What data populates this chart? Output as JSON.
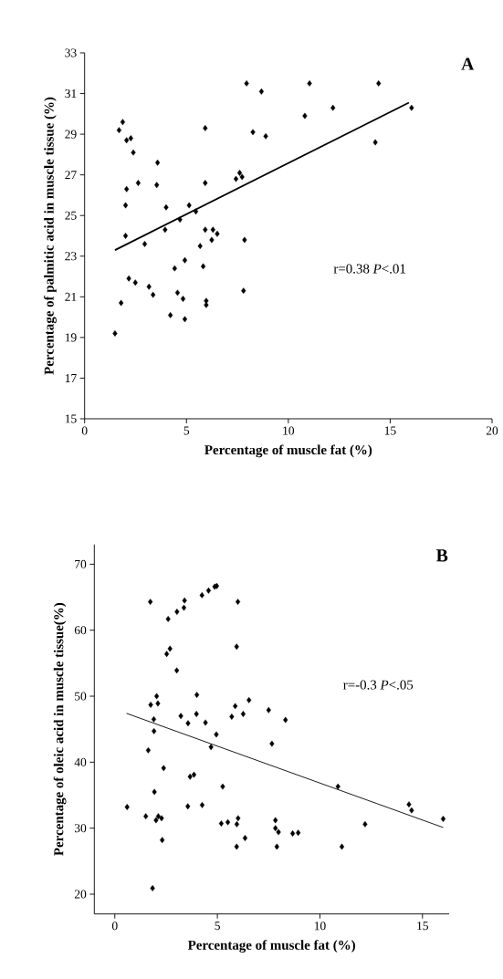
{
  "chart_data": [
    {
      "type": "scatter",
      "title": "A",
      "xlabel": "Percentage of muscle fat (%)",
      "ylabel": "Percentage of palmitic acid in muscle tissue (%)",
      "xlim": [
        0,
        20
      ],
      "ylim": [
        15,
        33
      ],
      "xticks": [
        0,
        5,
        10,
        15,
        20
      ],
      "yticks": [
        15,
        17,
        19,
        21,
        23,
        25,
        27,
        29,
        31,
        33
      ],
      "annotations": [
        "r=0.38    *P*<.01"
      ],
      "series": [
        {
          "type": "scatter",
          "marker": "diamond",
          "color": "#000000",
          "x": [
            1.49,
            1.79,
            1.69,
            1.87,
            2.06,
            2.27,
            2.39,
            2.06,
            2.01,
            2.01,
            2.17,
            2.49,
            2.63,
            2.95,
            3.16,
            3.36,
            3.58,
            3.54,
            4.0,
            3.95,
            4.21,
            4.42,
            4.56,
            4.68,
            4.83,
            4.92,
            4.92,
            5.13,
            5.46,
            5.67,
            5.82,
            5.92,
            5.92,
            5.92,
            5.97,
            5.97,
            6.24,
            6.3,
            6.51,
            7.43,
            7.61,
            7.73,
            7.85,
            7.8,
            7.95,
            8.26,
            8.68,
            8.89,
            10.81,
            11.04,
            12.19,
            14.27,
            14.43,
            16.05
          ],
          "values": [
            19.2,
            20.7,
            29.2,
            29.6,
            28.7,
            28.8,
            28.1,
            26.3,
            25.5,
            24.0,
            21.9,
            21.7,
            26.6,
            23.6,
            21.5,
            21.1,
            27.6,
            26.5,
            25.4,
            24.3,
            20.1,
            22.4,
            21.2,
            24.8,
            20.9,
            19.9,
            22.8,
            25.5,
            25.2,
            23.5,
            22.5,
            29.3,
            26.6,
            24.3,
            20.8,
            20.6,
            23.8,
            24.3,
            24.1,
            26.8,
            27.1,
            26.9,
            23.8,
            21.3,
            31.5,
            29.1,
            31.1,
            28.9,
            29.9,
            31.5,
            30.3,
            28.6,
            31.5,
            30.3
          ]
        },
        {
          "type": "line",
          "color": "#000000",
          "x": [
            1.49,
            15.92
          ],
          "values": [
            23.3,
            30.55
          ]
        }
      ]
    },
    {
      "type": "scatter",
      "title": "B",
      "xlabel": "Percentage of muscle fat (%)",
      "ylabel": "Percentage of oleic acid in muscle tissue(%)",
      "xlim": [
        -1,
        16.3
      ],
      "ylim": [
        17,
        73
      ],
      "xticks": [
        0,
        5,
        10,
        15
      ],
      "yticks": [
        20,
        30,
        40,
        50,
        60,
        70
      ],
      "annotations": [
        "r=-0.3  *P*<.05"
      ],
      "series": [
        {
          "type": "scatter",
          "marker": "diamond",
          "color": "#000000",
          "x": [
            0.6,
            1.73,
            1.51,
            1.63,
            1.84,
            1.75,
            2.04,
            2.1,
            1.9,
            1.91,
            1.93,
            2.01,
            2.12,
            2.28,
            2.31,
            2.38,
            2.6,
            2.53,
            2.69,
            3.03,
            3.02,
            3.37,
            3.4,
            3.22,
            3.57,
            3.56,
            3.67,
            3.86,
            4.0,
            3.98,
            4.25,
            4.26,
            4.42,
            4.57,
            4.69,
            4.87,
            4.97,
            4.95,
            5.26,
            5.19,
            5.51,
            5.7,
            5.87,
            6.0,
            5.94,
            5.95,
            6.01,
            5.94,
            6.26,
            6.35,
            6.54,
            7.5,
            7.66,
            8.32,
            7.83,
            7.83,
            7.98,
            7.9,
            8.67,
            8.94,
            10.88,
            11.07,
            12.2,
            14.34,
            14.47,
            16.01
          ],
          "values": [
            33.2,
            64.3,
            31.8,
            41.8,
            20.9,
            48.7,
            50.0,
            48.9,
            46.5,
            44.7,
            35.5,
            31.2,
            31.8,
            31.5,
            28.2,
            39.1,
            61.7,
            56.4,
            57.2,
            62.8,
            53.9,
            63.4,
            64.5,
            47.0,
            45.9,
            33.3,
            37.8,
            38.1,
            50.2,
            47.3,
            65.3,
            33.5,
            46.0,
            66.0,
            42.3,
            66.6,
            66.7,
            44.2,
            36.3,
            30.7,
            30.9,
            46.9,
            48.5,
            64.3,
            57.5,
            30.6,
            31.5,
            27.2,
            47.3,
            28.5,
            49.4,
            47.9,
            42.8,
            46.4,
            31.2,
            30.0,
            29.4,
            27.2,
            29.2,
            29.3,
            36.3,
            27.2,
            30.6,
            33.6,
            32.7,
            31.4
          ]
        },
        {
          "type": "line",
          "color": "#000000",
          "x": [
            0.57,
            16.01
          ],
          "values": [
            47.4,
            30.1
          ]
        }
      ]
    }
  ]
}
